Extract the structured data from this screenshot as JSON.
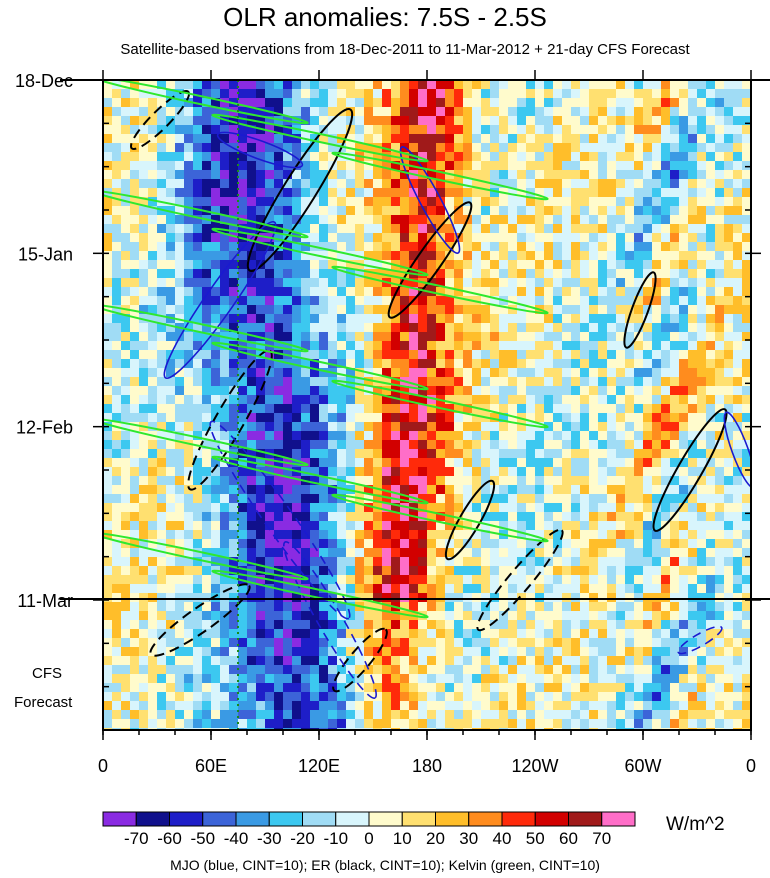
{
  "title": "OLR anomalies: 7.5S - 2.5S",
  "subtitle": "Satellite-based bservations from 18-Dec-2011 to 11-Mar-2012 + 21-day CFS Forecast",
  "footer": "MJO (blue, CINT=10); ER (black, CINT=10); Kelvin (green, CINT=10)",
  "side_note": [
    "CFS",
    "Forecast"
  ],
  "colorbar": {
    "units": "W/m^2",
    "labels": [
      "-70",
      "-60",
      "-50",
      "-40",
      "-30",
      "-20",
      "-10",
      "0",
      "10",
      "20",
      "30",
      "40",
      "50",
      "60",
      "70"
    ],
    "colors": [
      "#8a2be2",
      "#10108c",
      "#1e1ec8",
      "#3c64d8",
      "#3a9ae4",
      "#3cc8f0",
      "#a0dcf5",
      "#d8f5fc",
      "#fffbcc",
      "#ffe070",
      "#ffbe2a",
      "#ff8c1e",
      "#ff2a0a",
      "#d20000",
      "#a01a1a",
      "#ff6ec8"
    ]
  },
  "chart_data": {
    "type": "heatmap",
    "title": "OLR anomalies: 7.5S - 2.5S",
    "x_tick_labels": [
      "0",
      "60E",
      "120E",
      "180",
      "120W",
      "60W",
      "0"
    ],
    "x_ticks_deg_east": [
      0,
      60,
      120,
      180,
      240,
      300,
      360
    ],
    "y_tick_labels": [
      "18-Dec",
      "15-Jan",
      "12-Feb",
      "11-Mar"
    ],
    "y_range": [
      "18-Dec-2011",
      "01-Apr-2012"
    ],
    "observation_period": [
      "18-Dec-2011",
      "11-Mar-2012"
    ],
    "forecast_days": 21,
    "value_range": [
      -70,
      70
    ],
    "contour_interval": 10,
    "overlays": [
      {
        "name": "MJO",
        "color": "blue",
        "cint": 10
      },
      {
        "name": "ER",
        "color": "black",
        "cint": 10
      },
      {
        "name": "Kelvin",
        "color": "green",
        "cint": 10
      }
    ],
    "features": [
      {
        "region": "120E-200E",
        "period": "18-Dec to 11-Mar",
        "sign": "positive",
        "peak": 70
      },
      {
        "region": "20E-120E",
        "period": "18-Dec to 11-Mar",
        "sign": "negative",
        "peak": -70
      },
      {
        "region": "200E-280E",
        "period": "Jan to Mar",
        "sign": "weak",
        "peak": 10
      }
    ]
  }
}
